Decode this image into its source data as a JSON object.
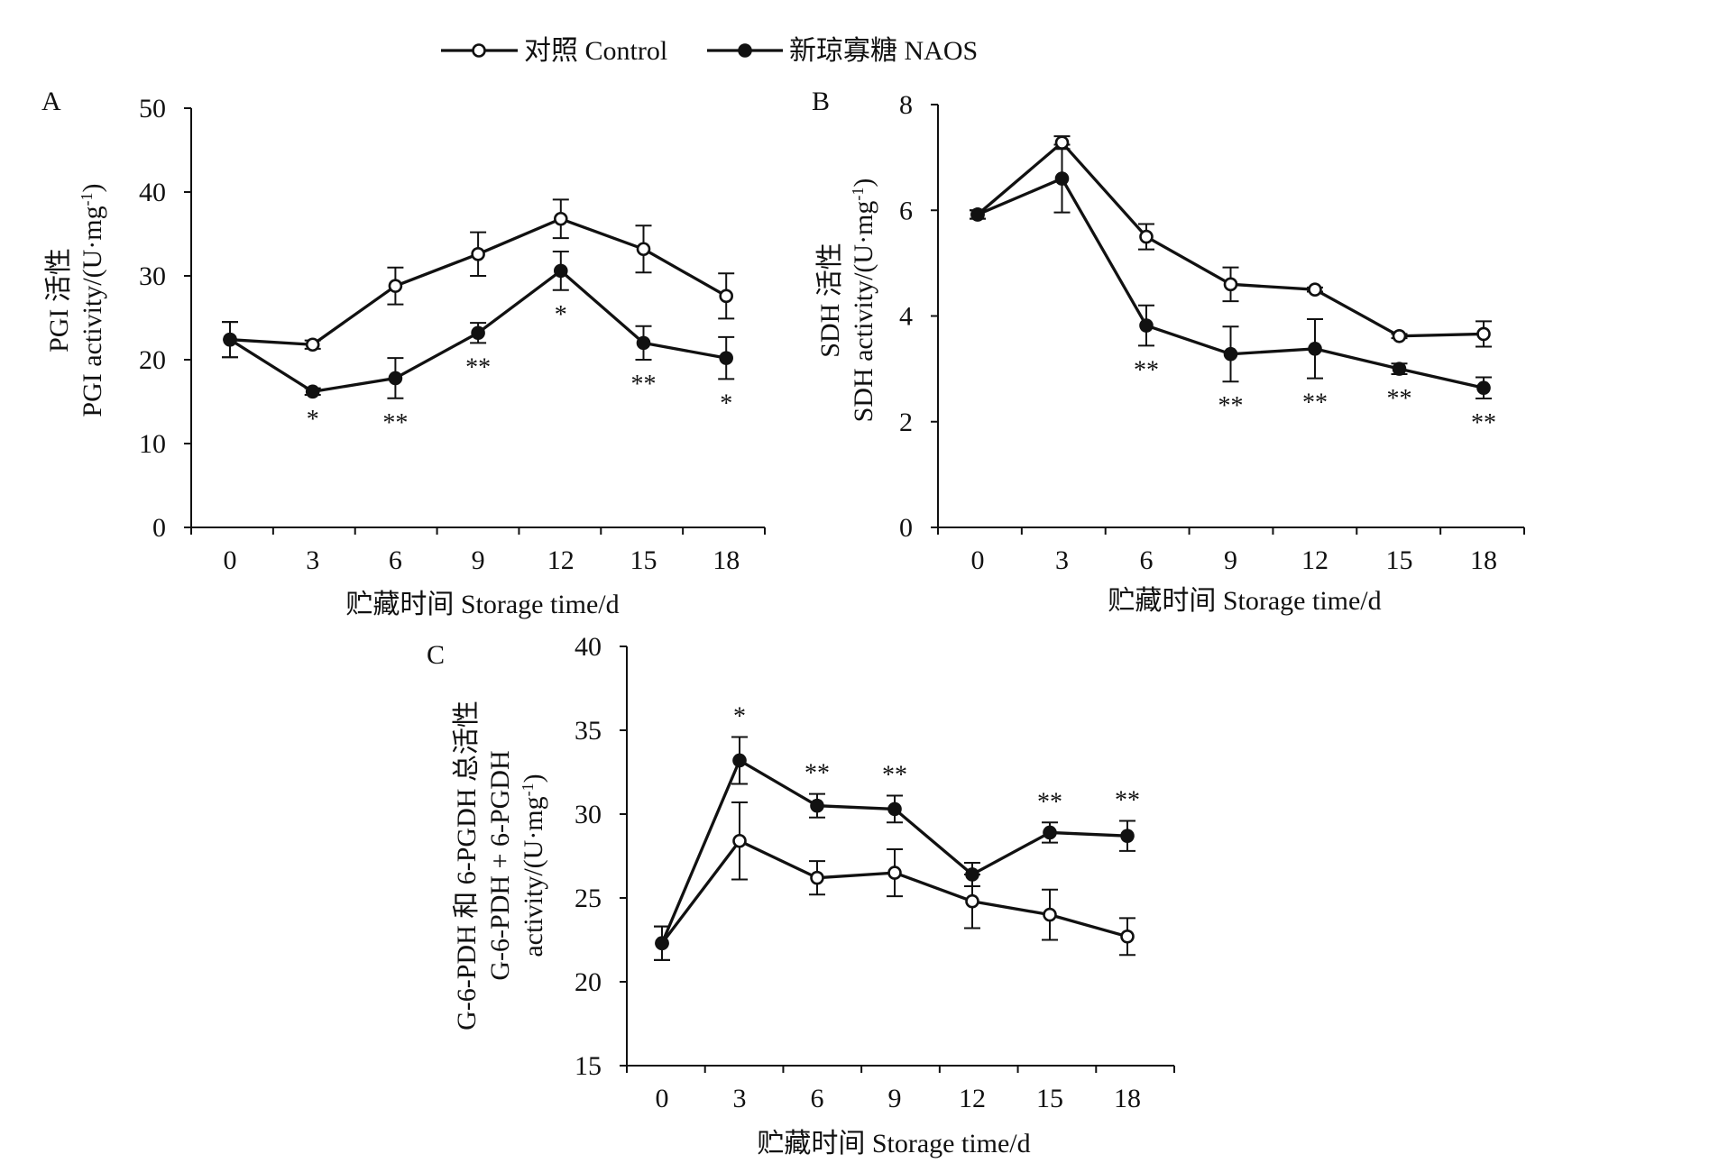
{
  "legend": {
    "control": "对照 Control",
    "naos": "新琼寡糖 NAOS"
  },
  "chart_data": [
    {
      "panel": "A",
      "type": "line",
      "ylabel_line1": "PGI 活性",
      "ylabel_line2": "PGI activity/(U·mg",
      "ylabel_sup": "-1",
      "ylabel_tail": ")",
      "xlabel": "贮藏时间 Storage time/d",
      "x": [
        0,
        3,
        6,
        9,
        12,
        15,
        18
      ],
      "ylim": [
        0,
        50
      ],
      "yticks": [
        0,
        10,
        20,
        30,
        40,
        50
      ],
      "series": [
        {
          "name": "对照 Control",
          "marker": "open",
          "values": [
            22.4,
            21.8,
            28.8,
            32.6,
            36.8,
            33.2,
            27.6
          ],
          "errors": [
            2.1,
            0.5,
            2.2,
            2.6,
            2.3,
            2.8,
            2.7
          ]
        },
        {
          "name": "新琼寡糖 NAOS",
          "marker": "filled",
          "values": [
            22.4,
            16.2,
            17.8,
            23.2,
            30.6,
            22.0,
            20.2
          ],
          "errors": [
            2.1,
            0.4,
            2.4,
            1.2,
            2.3,
            2.0,
            2.5
          ]
        }
      ],
      "significance": [
        "",
        "*",
        "**",
        "**",
        "*",
        "**",
        "*"
      ]
    },
    {
      "panel": "B",
      "type": "line",
      "ylabel_line1": "SDH 活性",
      "ylabel_line2": "SDH activity/(U·mg",
      "ylabel_sup": "-1",
      "ylabel_tail": ")",
      "xlabel": "贮藏时间 Storage time/d",
      "x": [
        0,
        3,
        6,
        9,
        12,
        15,
        18
      ],
      "ylim": [
        0,
        8
      ],
      "yticks": [
        0,
        2,
        4,
        6,
        8
      ],
      "series": [
        {
          "name": "对照 Control",
          "marker": "open",
          "values": [
            5.92,
            7.28,
            5.5,
            4.6,
            4.5,
            3.62,
            3.66
          ],
          "errors": [
            0.08,
            0.12,
            0.24,
            0.32,
            0.04,
            0.04,
            0.24
          ]
        },
        {
          "name": "新琼寡糖 NAOS",
          "marker": "filled",
          "values": [
            5.92,
            6.6,
            3.82,
            3.28,
            3.38,
            3.0,
            2.64
          ],
          "errors": [
            0.08,
            0.64,
            0.38,
            0.52,
            0.56,
            0.1,
            0.2
          ]
        }
      ],
      "significance": [
        "",
        "",
        "**",
        "**",
        "**",
        "**",
        "**"
      ]
    },
    {
      "panel": "C",
      "type": "line",
      "ylabel_line1": "G-6-PDH 和 6-PGDH 总活性",
      "ylabel_line2": "G-6-PDH + 6-PGDH",
      "ylabel_line3": "activity/(U·mg",
      "ylabel_sup": "-1",
      "ylabel_tail": ")",
      "xlabel": "贮藏时间 Storage time/d",
      "x": [
        0,
        3,
        6,
        9,
        12,
        15,
        18
      ],
      "ylim": [
        15,
        40
      ],
      "yticks": [
        15,
        20,
        25,
        30,
        35,
        40
      ],
      "series": [
        {
          "name": "对照 Control",
          "marker": "open",
          "values": [
            22.3,
            28.4,
            26.2,
            26.5,
            24.8,
            24.0,
            22.7
          ],
          "errors": [
            1.0,
            2.3,
            1.0,
            1.4,
            1.6,
            1.5,
            1.1
          ]
        },
        {
          "name": "新琼寡糖 NAOS",
          "marker": "filled",
          "values": [
            22.3,
            33.2,
            30.5,
            30.3,
            26.4,
            28.9,
            28.7
          ],
          "errors": [
            1.0,
            1.4,
            0.7,
            0.8,
            0.7,
            0.6,
            0.9
          ]
        }
      ],
      "significance": [
        "",
        "*",
        "**",
        "**",
        "",
        "**",
        "**"
      ]
    }
  ]
}
